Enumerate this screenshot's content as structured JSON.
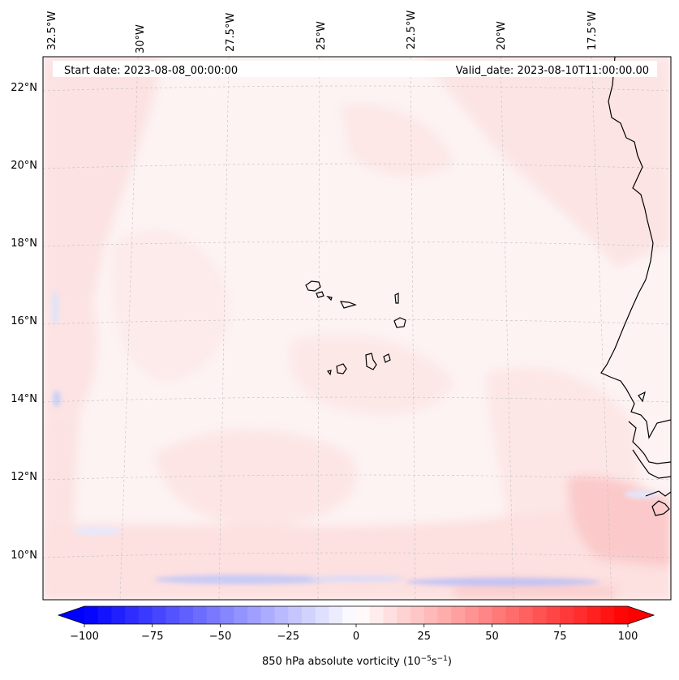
{
  "map": {
    "start_label": "Start date: 2023-08-08_00:00:00",
    "valid_label": "Valid_date: 2023-08-10T11:00:00.00",
    "lon_labels": [
      "32.5°W",
      "30°W",
      "27.5°W",
      "25°W",
      "22.5°W",
      "20°W",
      "17.5°W"
    ],
    "lat_labels": [
      "22°N",
      "20°N",
      "18°N",
      "16°N",
      "14°N",
      "12°N",
      "10°N"
    ]
  },
  "colorbar": {
    "label_text": "850 hPa absolute vorticity (10",
    "label_exp1": "−5",
    "label_mid": "s",
    "label_exp2": "−1",
    "label_close": ")",
    "ticks": [
      "−100",
      "−75",
      "−50",
      "−25",
      "0",
      "25",
      "50",
      "75",
      "100"
    ],
    "min": -100,
    "max": 100,
    "step": 5,
    "neg_color": "#0000ff",
    "pos_color": "#ff0000"
  }
}
